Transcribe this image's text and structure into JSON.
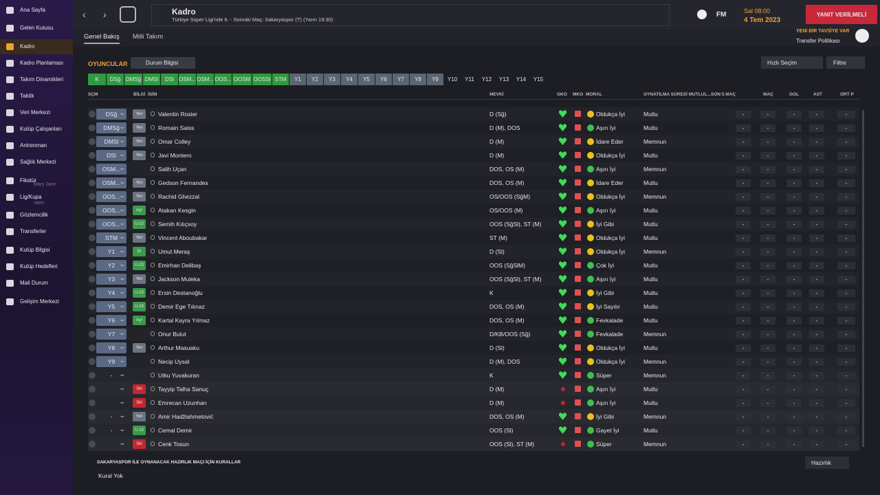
{
  "sidebar": {
    "items": [
      "Ana Sayfa",
      "Gelen Kutusu",
      "Kadro",
      "Kadro Planlaması",
      "Takım Dinamikleri",
      "Taktik",
      "Veri Merkezi",
      "Kulüp Çalışanları",
      "Antrenman",
      "Sağlık Merkezi",
      "Fikstür",
      "Lig/Kupa",
      "Gözlemcilik",
      "Transferler",
      "Kulüp Bilgisi",
      "Kulüp Hedefleri",
      "Mali Durum",
      "Gelişim Merkezi"
    ],
    "overlay": [
      "Mary Jane",
      "ratex"
    ]
  },
  "header": {
    "title": "Kadro",
    "subtitle": "Türkiye Süper Ligi'nde 6. - Sonraki Maç: Sakaryaspor (T) (Yarın 19:30)",
    "logo": "FM",
    "time": "Sal 08:00",
    "date": "4 Tem 2023",
    "alert": "YANIT VERİLMELİ",
    "tabs": [
      "Genel Bakış",
      "Milli Takım"
    ]
  },
  "notice": {
    "title": "YENİ BİR TAVSİYE VAR",
    "text": "Transfer Politikası"
  },
  "toolbar": {
    "label": "OYUNCULAR",
    "view": "Durum Bilgisi",
    "quick": "Hızlı Seçim",
    "filter": "Filtre",
    "positions": [
      "K",
      "DSğ",
      "DMSğ",
      "DMSl",
      "DSl",
      "OSM...",
      "OSM...",
      "OOS...",
      "OOSM",
      "OOSSl",
      "STM",
      "Y1",
      "Y2",
      "Y3",
      "Y4",
      "Y5",
      "Y6",
      "Y7",
      "Y8",
      "Y9",
      "Y10",
      "Y11",
      "Y12",
      "Y13",
      "Y14",
      "Y15"
    ]
  },
  "table": {
    "columns": [
      "SÇM",
      "BİLGİ",
      "İSİM",
      "MEVKİ",
      "GKO",
      "MKO",
      "MORAL",
      "OYNATILMA SÜRESİ MUTLUL...",
      "SON 5 MAÇ",
      "MAÇ",
      "GOL",
      "AST",
      "ORT P"
    ],
    "rows": [
      {
        "sel": "DSğ",
        "info": "Yen",
        "info_color": "#6b7380",
        "name": "Valentin Rosier",
        "pos": "D (Sğ)",
        "morale": "Oldukça İyi",
        "morale_color": "#e8c21c",
        "happy": "Mutlu",
        "stats": [
          "-",
          "-",
          "-",
          "-",
          "-"
        ]
      },
      {
        "sel": "DMSğ",
        "info": "Yen",
        "info_color": "#6b7380",
        "name": "Romain Saiss",
        "pos": "D (M), DOS",
        "morale": "Aşırı İyi",
        "morale_color": "#3fbf4f",
        "happy": "Mutlu",
        "stats": [
          "-",
          "-",
          "-",
          "-",
          "-"
        ]
      },
      {
        "sel": "DMSl",
        "info": "Yen",
        "info_color": "#6b7380",
        "name": "Omar Colley",
        "pos": "D (M)",
        "morale": "İdare Eder",
        "morale_color": "#e8c21c",
        "happy": "Memnun",
        "stats": [
          "-",
          "-",
          "-",
          "-",
          "-"
        ]
      },
      {
        "sel": "DSl",
        "info": "Yen",
        "info_color": "#6b7380",
        "name": "Javi Montero",
        "pos": "D (M)",
        "morale": "Oldukça İyi",
        "morale_color": "#e8c21c",
        "happy": "Mutlu",
        "stats": [
          "-",
          "-",
          "-",
          "-",
          "-"
        ]
      },
      {
        "sel": "OSM...",
        "info": null,
        "info_color": null,
        "name": "Salih Uçan",
        "pos": "DOS, OS (M)",
        "morale": "Aşırı İyi",
        "morale_color": "#3fbf4f",
        "happy": "Memnun",
        "stats": [
          "-",
          "-",
          "-",
          "-",
          "-"
        ]
      },
      {
        "sel": "OSM...",
        "info": "Yen",
        "info_color": "#6b7380",
        "name": "Gedson Fernandes",
        "pos": "DOS, OS (M)",
        "morale": "İdare Eder",
        "morale_color": "#e8c21c",
        "happy": "Mutlu",
        "stats": [
          "-",
          "-",
          "-",
          "-",
          "-"
        ]
      },
      {
        "sel": "OOS...",
        "info": "Yen",
        "info_color": "#6b7380",
        "name": "Rachid Ghezzal",
        "pos": "OS/OOS (SğM)",
        "morale": "Oldukça İyi",
        "morale_color": "#e8c21c",
        "happy": "Memnun",
        "stats": [
          "-",
          "-",
          "-",
          "-",
          "-"
        ]
      },
      {
        "sel": "OOS...",
        "info": "Ayr",
        "info_color": "#3a9a4a",
        "name": "Atakan Kesgin",
        "pos": "OS/OOS (M)",
        "morale": "Aşırı İyi",
        "morale_color": "#3fbf4f",
        "happy": "Mutlu",
        "stats": [
          "-",
          "-",
          "-",
          "-",
          "-"
        ]
      },
      {
        "sel": "OOS...",
        "info": "U-23",
        "info_color": "#3a9a4a",
        "name": "Semih Kılıçsoy",
        "pos": "OOS (SğSl), ST (M)",
        "morale": "İyi Gibi",
        "morale_color": "#e8c21c",
        "happy": "Mutlu",
        "stats": [
          "-",
          "-",
          "-",
          "-",
          "-"
        ]
      },
      {
        "sel": "STM",
        "info": "Yen",
        "info_color": "#6b7380",
        "name": "Vincent Aboubakar",
        "pos": "ST (M)",
        "morale": "Oldukça İyi",
        "morale_color": "#e8c21c",
        "happy": "Mutlu",
        "stats": [
          "-",
          "-",
          "-",
          "-",
          "-"
        ]
      },
      {
        "sel": "Y1",
        "info": "İzl",
        "info_color": "#3a9a4a",
        "name": "Umut Meraş",
        "pos": "D (Sl)",
        "morale": "Oldukça İyi",
        "morale_color": "#e8c21c",
        "happy": "Memnun",
        "stats": [
          "-",
          "-",
          "-",
          "-",
          "-"
        ]
      },
      {
        "sel": "Y2",
        "info": "U-23",
        "info_color": "#3a9a4a",
        "name": "Emirhan Delibaş",
        "pos": "OOS (SğSlM)",
        "morale": "Çok İyi",
        "morale_color": "#3fbf4f",
        "happy": "Mutlu",
        "stats": [
          "-",
          "-",
          "-",
          "-",
          "-"
        ]
      },
      {
        "sel": "Y3",
        "info": "Yen",
        "info_color": "#6b7380",
        "name": "Jackson Muleka",
        "pos": "OOS (SğSl), ST (M)",
        "morale": "Aşırı İyi",
        "morale_color": "#3fbf4f",
        "happy": "Mutlu",
        "stats": [
          "-",
          "-",
          "-",
          "-",
          "-"
        ]
      },
      {
        "sel": "Y4",
        "info": "U-23",
        "info_color": "#3a9a4a",
        "name": "Ersin Destanoğlu",
        "pos": "K",
        "morale": "İyi Gibi",
        "morale_color": "#e8c21c",
        "happy": "Mutlu",
        "stats": [
          "-",
          "-",
          "-",
          "-",
          "-"
        ]
      },
      {
        "sel": "Y5",
        "info": "U-23",
        "info_color": "#3a9a4a",
        "name": "Demir Ege Tıknaz",
        "pos": "DOS, OS (M)",
        "morale": "İyi Sayılır",
        "morale_color": "#e8c21c",
        "happy": "Mutlu",
        "stats": [
          "-",
          "-",
          "-",
          "-",
          "-"
        ]
      },
      {
        "sel": "Y6",
        "info": "Ayr",
        "info_color": "#3a9a4a",
        "name": "Kartal Kayra Yılmaz",
        "pos": "DOS, OS (M)",
        "morale": "Fevkalade",
        "morale_color": "#3fbf4f",
        "happy": "Mutlu",
        "stats": [
          "-",
          "-",
          "-",
          "-",
          "-"
        ]
      },
      {
        "sel": "Y7",
        "info": null,
        "info_color": null,
        "name": "Onur Bulut",
        "pos": "D/KB/OOS (Sğ)",
        "morale": "Fevkalade",
        "morale_color": "#3fbf4f",
        "happy": "Memnun",
        "stats": [
          "-",
          "-",
          "-",
          "-",
          "-"
        ]
      },
      {
        "sel": "Y8",
        "info": "Yen",
        "info_color": "#6b7380",
        "name": "Arthur Masuaku",
        "pos": "D (Sl)",
        "morale": "Oldukça İyi",
        "morale_color": "#e8c21c",
        "happy": "Mutlu",
        "stats": [
          "-",
          "-",
          "-",
          "-",
          "-"
        ]
      },
      {
        "sel": "Y9",
        "info": null,
        "info_color": null,
        "name": "Necip Uysal",
        "pos": "D (M), DOS",
        "morale": "Oldukça İyi",
        "morale_color": "#e8c21c",
        "happy": "Memnun",
        "stats": [
          "-",
          "-",
          "-",
          "-",
          "-"
        ]
      },
      {
        "sel": "-",
        "info": null,
        "info_color": null,
        "name": "Utku Yuvakuran",
        "pos": "K",
        "morale": "Süper",
        "morale_color": "#3fbf4f",
        "happy": "Memnun",
        "stats": [
          "-",
          "-",
          "-",
          "-",
          "-"
        ]
      },
      {
        "sel": null,
        "info": "Skt",
        "info_color": "#c0282e",
        "name": "Tayyip Talha Sanuç",
        "pos": "D (M)",
        "morale": "Aşırı İyi",
        "morale_color": "#3fbf4f",
        "happy": "Mutlu",
        "stats": [
          "-",
          "-",
          "-",
          "-",
          "-"
        ]
      },
      {
        "sel": null,
        "info": "Skt",
        "info_color": "#c0282e",
        "name": "Emrecan Uzunhan",
        "pos": "D (M)",
        "morale": "Aşırı İyi",
        "morale_color": "#3fbf4f",
        "happy": "Mutlu",
        "stats": [
          "-",
          "-",
          "-",
          "-",
          "-"
        ]
      },
      {
        "sel": "-",
        "info": "Yen",
        "info_color": "#6b7380",
        "name": "Amir Hadžiahmetović",
        "pos": "DOS, OS (M)",
        "morale": "İyi Gibi",
        "morale_color": "#e8c21c",
        "happy": "Memnun",
        "stats": [
          "-",
          "-",
          "-",
          "-",
          "-"
        ]
      },
      {
        "sel": "-",
        "info": "U-23",
        "info_color": "#3a9a4a",
        "name": "Cemal Demir",
        "pos": "OOS (Sl)",
        "morale": "Gayet İyi",
        "morale_color": "#3fbf4f",
        "happy": "Mutlu",
        "stats": [
          "-",
          "-",
          "-",
          "-",
          "-"
        ]
      },
      {
        "sel": null,
        "info": "Skt",
        "info_color": "#c0282e",
        "name": "Cenk Tosun",
        "pos": "OOS (Sl), ST (M)",
        "morale": "Süper",
        "morale_color": "#3fbf4f",
        "happy": "Memnun",
        "stats": [
          "-",
          "-",
          "-",
          "-",
          "-"
        ]
      }
    ]
  },
  "footer": {
    "title": "SAKARYASPOR İLE OYNANACAK HAZIRLIK MAÇI İÇİN KURALLAR",
    "text": "Kural Yok",
    "button": "Hazırlık"
  }
}
